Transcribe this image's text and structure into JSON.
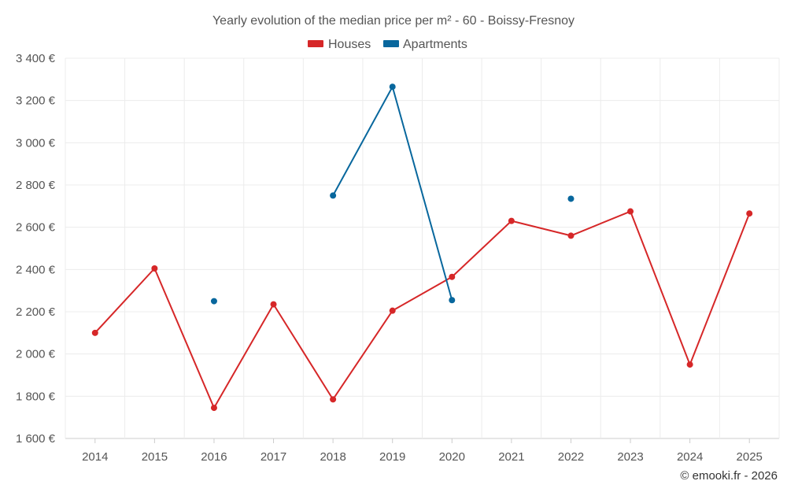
{
  "chart_data": {
    "type": "line",
    "title": "Yearly evolution of the median price per m² - 60 - Boissy-Fresnoy",
    "categories": [
      "2014",
      "2015",
      "2016",
      "2017",
      "2018",
      "2019",
      "2020",
      "2021",
      "2022",
      "2023",
      "2024",
      "2025"
    ],
    "y_ticks": [
      1600,
      1800,
      2000,
      2200,
      2400,
      2600,
      2800,
      3000,
      3200,
      3400
    ],
    "y_tick_labels": [
      "1 600 €",
      "1 800 €",
      "2 000 €",
      "2 200 €",
      "2 400 €",
      "2 600 €",
      "2 800 €",
      "3 000 €",
      "3 200 €",
      "3 400 €"
    ],
    "ylim": [
      1600,
      3400
    ],
    "grid": true,
    "legend_position": "top-center",
    "series": [
      {
        "name": "Houses",
        "color": "#d62728",
        "values": [
          2100,
          2405,
          1745,
          2235,
          1785,
          2205,
          2365,
          2630,
          2560,
          2675,
          1950,
          2665
        ]
      },
      {
        "name": "Apartments",
        "color": "#08679d",
        "values": [
          null,
          null,
          2250,
          null,
          2750,
          3265,
          2255,
          null,
          2735,
          null,
          null,
          null
        ]
      }
    ],
    "credit": "© emooki.fr - 2026"
  }
}
